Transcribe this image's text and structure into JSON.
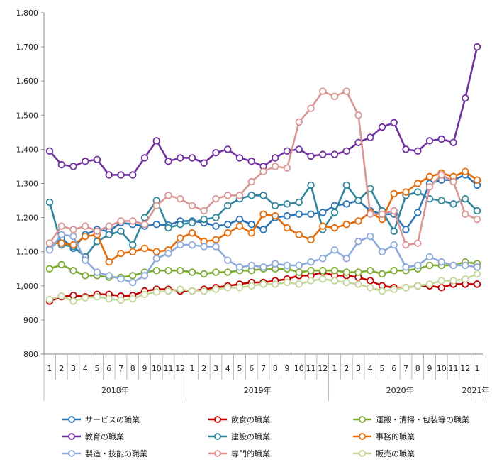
{
  "chart_data": {
    "type": "line",
    "title": "",
    "xlabel": "",
    "ylabel": "",
    "ylim": [
      800,
      1800
    ],
    "yticks": [
      800,
      900,
      1000,
      1100,
      1200,
      1300,
      1400,
      1500,
      1600,
      1700,
      1800
    ],
    "ytick_labels": [
      "800",
      "900",
      "1,000",
      "1,100",
      "1,200",
      "1,300",
      "1,400",
      "1,500",
      "1,600",
      "1,700",
      "1,800"
    ],
    "x": [
      "2018-01",
      "2018-02",
      "2018-03",
      "2018-04",
      "2018-05",
      "2018-06",
      "2018-07",
      "2018-08",
      "2018-09",
      "2018-10",
      "2018-11",
      "2018-12",
      "2019-01",
      "2019-02",
      "2019-03",
      "2019-04",
      "2019-05",
      "2019-06",
      "2019-07",
      "2019-08",
      "2019-09",
      "2019-10",
      "2019-11",
      "2019-12",
      "2020-01",
      "2020-02",
      "2020-03",
      "2020-04",
      "2020-05",
      "2020-06",
      "2020-07",
      "2020-08",
      "2020-09",
      "2020-10",
      "2020-11",
      "2020-12",
      "2021-01"
    ],
    "month_labels": [
      "1",
      "2",
      "3",
      "4",
      "5",
      "6",
      "7",
      "8",
      "9",
      "10",
      "11",
      "12",
      "1",
      "2",
      "3",
      "4",
      "5",
      "6",
      "7",
      "8",
      "9",
      "10",
      "11",
      "12",
      "1",
      "2",
      "3",
      "4",
      "5",
      "6",
      "7",
      "8",
      "9",
      "10",
      "11",
      "12",
      "1"
    ],
    "year_labels": [
      "2018年",
      "2019年",
      "2020年",
      "2021年"
    ],
    "grid": false,
    "legend_position": "bottom",
    "series": [
      {
        "name": "サービスの職業",
        "color": "#2e75b6",
        "values": [
          1108,
          1140,
          1110,
          1150,
          1165,
          1160,
          1185,
          1180,
          1175,
          1180,
          1178,
          1190,
          1190,
          1185,
          1175,
          1180,
          1195,
          1180,
          1165,
          1200,
          1205,
          1210,
          1210,
          1215,
          1235,
          1240,
          1250,
          1220,
          1210,
          1210,
          1165,
          1215,
          1300,
          1310,
          1310,
          1325,
          1295
        ]
      },
      {
        "name": "飲食の職業",
        "color": "#c00000",
        "values": [
          955,
          968,
          972,
          968,
          975,
          975,
          970,
          972,
          985,
          990,
          990,
          985,
          985,
          990,
          995,
          1000,
          1005,
          1010,
          1010,
          1015,
          1020,
          1030,
          1030,
          1040,
          1030,
          1030,
          1025,
          1015,
          1000,
          995,
          995,
          1000,
          1000,
          995,
          1005,
          1005,
          1005
        ]
      },
      {
        "name": "運搬・清掃・包装等の職業",
        "color": "#7dab35",
        "values": [
          1050,
          1062,
          1045,
          1030,
          1030,
          1025,
          1025,
          1030,
          1040,
          1045,
          1045,
          1045,
          1040,
          1035,
          1040,
          1040,
          1045,
          1045,
          1050,
          1050,
          1050,
          1040,
          1045,
          1045,
          1045,
          1040,
          1040,
          1045,
          1035,
          1045,
          1045,
          1050,
          1060,
          1060,
          1060,
          1070,
          1065
        ]
      },
      {
        "name": "教育の職業",
        "color": "#7030a0",
        "values": [
          1395,
          1355,
          1350,
          1365,
          1370,
          1325,
          1325,
          1325,
          1375,
          1425,
          1365,
          1375,
          1375,
          1360,
          1390,
          1400,
          1375,
          1365,
          1350,
          1375,
          1395,
          1400,
          1380,
          1385,
          1385,
          1395,
          1420,
          1435,
          1465,
          1478,
          1400,
          1395,
          1425,
          1430,
          1420,
          1550,
          1700
        ]
      },
      {
        "name": "建設の職業",
        "color": "#31869b",
        "values": [
          1245,
          1120,
          1115,
          1085,
          1130,
          1150,
          1160,
          1120,
          1200,
          1250,
          1170,
          1180,
          1185,
          1195,
          1200,
          1235,
          1255,
          1265,
          1265,
          1235,
          1240,
          1245,
          1295,
          1165,
          1215,
          1295,
          1250,
          1285,
          1220,
          1160,
          1265,
          1275,
          1255,
          1250,
          1240,
          1255,
          1220
        ]
      },
      {
        "name": "事務的職業",
        "color": "#e46c0a",
        "values": [
          1125,
          1125,
          1120,
          1145,
          1150,
          1070,
          1095,
          1100,
          1110,
          1100,
          1105,
          1140,
          1155,
          1130,
          1135,
          1155,
          1175,
          1155,
          1210,
          1205,
          1170,
          1150,
          1135,
          1175,
          1170,
          1180,
          1190,
          1215,
          1195,
          1270,
          1275,
          1300,
          1320,
          1330,
          1320,
          1335,
          1310
        ]
      },
      {
        "name": "製造・技能の職業",
        "color": "#8eaadb",
        "values": [
          1105,
          1150,
          1145,
          1075,
          1040,
          1030,
          1020,
          1010,
          1030,
          1080,
          1095,
          1120,
          1120,
          1115,
          1115,
          1075,
          1055,
          1060,
          1055,
          1065,
          1060,
          1060,
          1070,
          1080,
          1105,
          1080,
          1130,
          1145,
          1100,
          1120,
          1055,
          1060,
          1085,
          1070,
          1060,
          1060,
          1055
        ]
      },
      {
        "name": "専門的職業",
        "color": "#d99694",
        "values": [
          1125,
          1175,
          1165,
          1175,
          1160,
          1175,
          1190,
          1190,
          1180,
          1235,
          1265,
          1255,
          1235,
          1220,
          1255,
          1265,
          1265,
          1305,
          1335,
          1350,
          1345,
          1480,
          1520,
          1570,
          1555,
          1570,
          1500,
          1210,
          1210,
          1220,
          1120,
          1125,
          1290,
          1325,
          1305,
          1210,
          1195
        ]
      },
      {
        "name": "販売の職業",
        "color": "#c3d69b",
        "values": [
          960,
          970,
          955,
          965,
          968,
          962,
          958,
          962,
          975,
          982,
          985,
          990,
          985,
          985,
          990,
          995,
          995,
          1000,
          1005,
          1005,
          1010,
          1005,
          1015,
          1020,
          1015,
          1010,
          1005,
          995,
          985,
          990,
          995,
          1000,
          1005,
          1015,
          1015,
          1020,
          1035
        ]
      }
    ]
  }
}
